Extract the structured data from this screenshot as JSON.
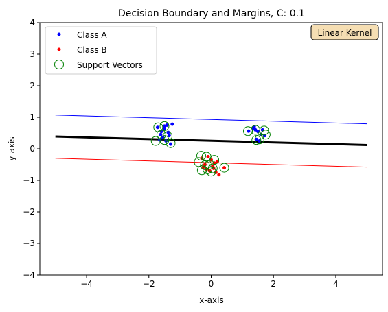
{
  "chart_data": {
    "type": "scatter",
    "title": "Decision Boundary and Margins, C: 0.1",
    "xlabel": "x-axis",
    "ylabel": "y-axis",
    "xlim": [
      -5.5,
      5.5
    ],
    "ylim": [
      -4,
      4
    ],
    "xticks": [
      -4,
      -2,
      0,
      2,
      4
    ],
    "yticks": [
      -4,
      -3,
      -2,
      -1,
      0,
      1,
      2,
      3,
      4
    ],
    "xtick_labels": [
      "−4",
      "−2",
      "0",
      "2",
      "4"
    ],
    "ytick_labels": [
      "−4",
      "−3",
      "−2",
      "−1",
      "0",
      "1",
      "2",
      "3",
      "4"
    ],
    "grid": false,
    "legend_position": "upper left",
    "annotation": "Linear Kernel",
    "series": [
      {
        "name": "Class A",
        "color": "#0000ff",
        "marker": "dot",
        "points": [
          [
            -1.72,
            0.68
          ],
          [
            -1.6,
            0.55
          ],
          [
            -1.5,
            0.72
          ],
          [
            -1.42,
            0.75
          ],
          [
            -1.35,
            0.42
          ],
          [
            -1.25,
            0.78
          ],
          [
            -1.55,
            0.35
          ],
          [
            -1.45,
            0.25
          ],
          [
            -1.3,
            0.15
          ],
          [
            -1.65,
            0.28
          ],
          [
            -1.5,
            0.62
          ],
          [
            -1.38,
            0.52
          ],
          [
            -1.62,
            0.45
          ],
          [
            1.2,
            0.56
          ],
          [
            1.35,
            0.65
          ],
          [
            1.42,
            0.6
          ],
          [
            1.5,
            0.55
          ],
          [
            1.6,
            0.45
          ],
          [
            1.72,
            0.42
          ],
          [
            1.45,
            0.3
          ],
          [
            1.55,
            0.25
          ],
          [
            1.65,
            0.6
          ],
          [
            1.38,
            0.7
          ]
        ]
      },
      {
        "name": "Class B",
        "color": "#ff0000",
        "marker": "dot",
        "points": [
          [
            -0.3,
            -0.3
          ],
          [
            -0.2,
            -0.5
          ],
          [
            -0.1,
            -0.25
          ],
          [
            0.0,
            -0.35
          ],
          [
            0.05,
            -0.55
          ],
          [
            0.1,
            -0.45
          ],
          [
            -0.05,
            -0.7
          ],
          [
            0.15,
            -0.75
          ],
          [
            0.25,
            -0.82
          ],
          [
            0.42,
            -0.6
          ],
          [
            -0.15,
            -0.65
          ],
          [
            0.08,
            -0.62
          ],
          [
            -0.25,
            -0.58
          ],
          [
            0.2,
            -0.4
          ]
        ]
      },
      {
        "name": "Support Vectors",
        "color": "#008000",
        "marker": "open-circle",
        "points": [
          [
            -1.7,
            0.68
          ],
          [
            -1.5,
            0.72
          ],
          [
            -1.6,
            0.45
          ],
          [
            -1.4,
            0.4
          ],
          [
            -1.78,
            0.25
          ],
          [
            -1.5,
            0.28
          ],
          [
            -1.3,
            0.18
          ],
          [
            1.18,
            0.56
          ],
          [
            1.42,
            0.6
          ],
          [
            1.7,
            0.58
          ],
          [
            1.75,
            0.45
          ],
          [
            1.45,
            0.28
          ],
          [
            1.55,
            0.3
          ],
          [
            -0.32,
            -0.22
          ],
          [
            -0.4,
            -0.42
          ],
          [
            -0.15,
            -0.25
          ],
          [
            0.1,
            -0.35
          ],
          [
            -0.2,
            -0.52
          ],
          [
            -0.05,
            -0.5
          ],
          [
            0.05,
            -0.62
          ],
          [
            -0.12,
            -0.65
          ],
          [
            -0.3,
            -0.68
          ],
          [
            0.42,
            -0.6
          ],
          [
            0.0,
            -0.72
          ]
        ]
      }
    ],
    "lines": [
      {
        "name": "boundary",
        "color": "#000000",
        "x": [
          -5,
          5
        ],
        "y": [
          0.39,
          0.12
        ]
      },
      {
        "name": "upper-margin",
        "color": "#0000ff",
        "x": [
          -5,
          5
        ],
        "y": [
          1.07,
          0.79
        ]
      },
      {
        "name": "lower-margin",
        "color": "#ff0000",
        "x": [
          -5,
          5
        ],
        "y": [
          -0.3,
          -0.58
        ]
      }
    ]
  }
}
